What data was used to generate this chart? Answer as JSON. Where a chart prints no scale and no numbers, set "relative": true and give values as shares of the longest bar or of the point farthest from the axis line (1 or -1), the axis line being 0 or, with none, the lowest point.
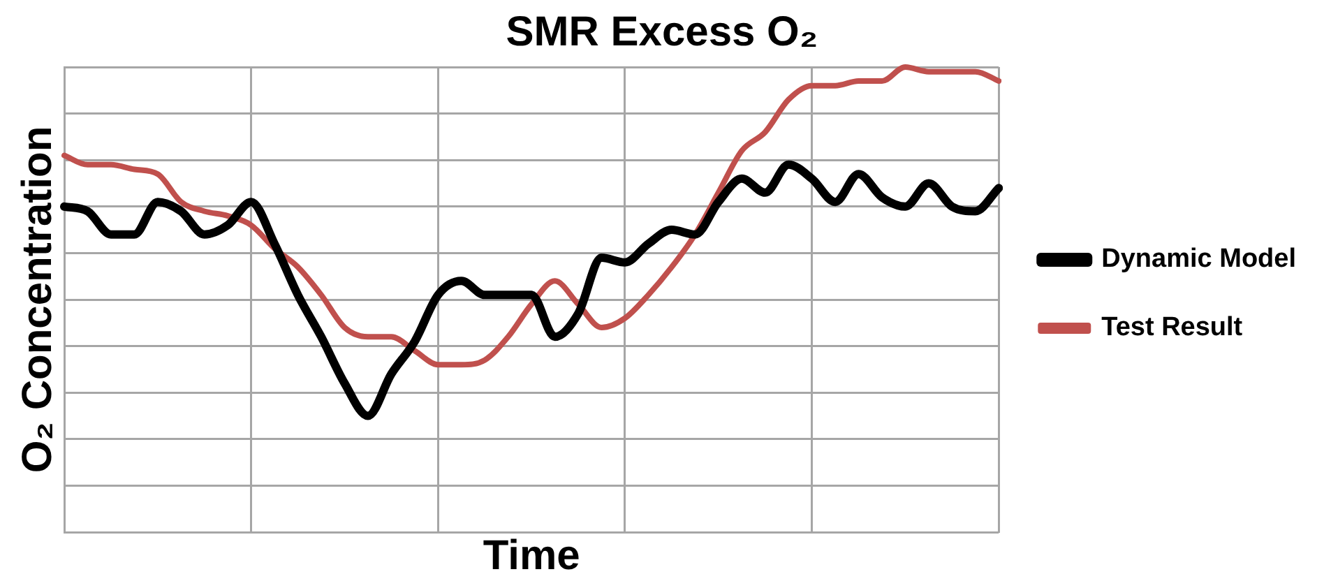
{
  "chart_data": {
    "type": "line",
    "title": "SMR Excess O₂",
    "xlabel": "Time",
    "ylabel": "O₂ Concentration",
    "relative": true,
    "grid": true,
    "legend": "right",
    "marker": "none",
    "line_style": "solid",
    "categories": [
      null,
      null,
      null,
      null,
      null,
      null,
      null,
      null,
      null,
      null,
      null,
      null,
      null,
      null,
      null,
      null,
      null,
      null,
      null,
      null,
      null,
      null,
      null,
      null,
      null,
      null,
      null,
      null,
      null,
      null,
      null,
      null,
      null,
      null,
      null,
      null,
      null,
      null,
      null,
      null,
      null
    ],
    "series": [
      {
        "name": "Dynamic Model",
        "color": "#000000",
        "values": [
          0.7,
          0.69,
          0.64,
          0.64,
          0.71,
          0.69,
          0.64,
          0.66,
          0.71,
          0.62,
          0.51,
          0.42,
          0.32,
          0.25,
          0.34,
          0.41,
          0.51,
          0.54,
          0.51,
          0.51,
          0.51,
          0.42,
          0.47,
          0.59,
          0.58,
          0.62,
          0.65,
          0.64,
          0.71,
          0.76,
          0.73,
          0.79,
          0.76,
          0.71,
          0.77,
          0.72,
          0.7,
          0.75,
          0.7,
          0.69,
          0.74
        ]
      },
      {
        "name": "Test Result",
        "color": "#c0504d",
        "values": [
          0.81,
          0.79,
          0.79,
          0.78,
          0.77,
          0.71,
          0.69,
          0.68,
          0.66,
          0.61,
          0.57,
          0.51,
          0.44,
          0.42,
          0.42,
          0.39,
          0.36,
          0.36,
          0.37,
          0.42,
          0.49,
          0.54,
          0.49,
          0.44,
          0.46,
          0.51,
          0.57,
          0.64,
          0.73,
          0.82,
          0.86,
          0.93,
          0.96,
          0.96,
          0.97,
          0.97,
          1.0,
          0.99,
          0.99,
          0.99,
          0.97
        ]
      }
    ]
  }
}
